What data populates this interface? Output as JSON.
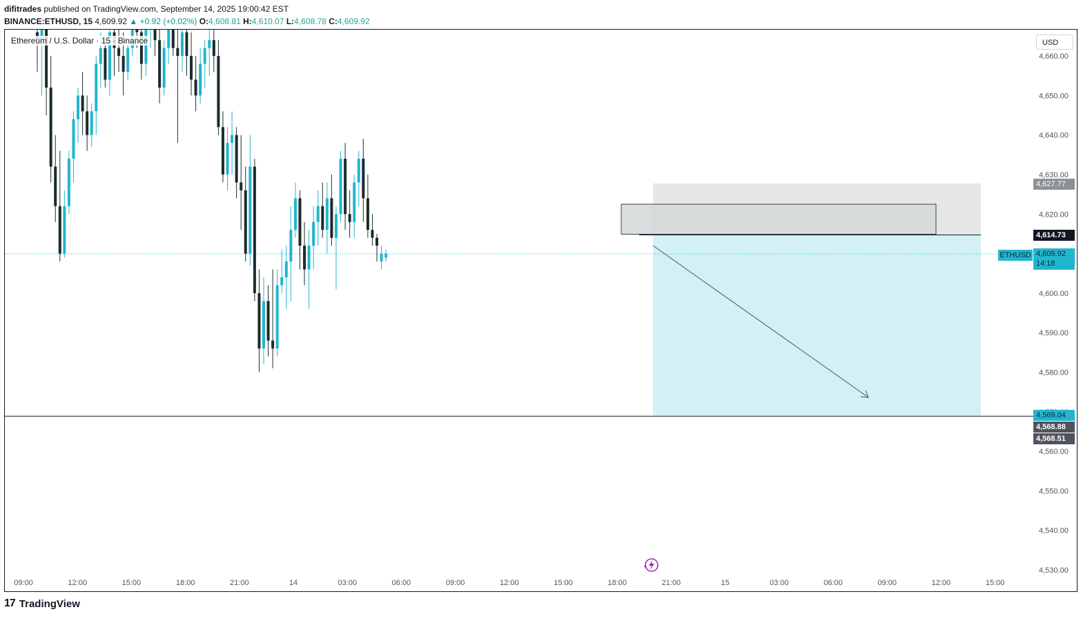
{
  "header": {
    "publisher": "difitrades",
    "published_text": "published on TradingView.com, September 14, 2025 19:00:42 EST",
    "symbol": "BINANCE:ETHUSD, 15",
    "last": "4,609.92",
    "change": "▲ +0.92 (+0.02%)",
    "o_label": "O:",
    "o_val": "4,608.81",
    "h_label": "H:",
    "h_val": "4,610.07",
    "l_label": "L:",
    "l_val": "4,608.78",
    "c_label": "C:",
    "c_val": "4,609.92"
  },
  "legend": {
    "symbol_name": "Ethereum / U.S. Dollar · 15 · Binance"
  },
  "currency": "USD",
  "price_tags": {
    "target_zone_top": "4,627.77",
    "entry": "4,614.73",
    "ethusd_label": "ETHUSD",
    "last_price": "4,609.92",
    "countdown": "14:18",
    "target": "4,569.04",
    "t2": "4,568.88",
    "t3": "4,568.51"
  },
  "footer": {
    "brand": "TradingView"
  },
  "colors": {
    "bull": "#22b5cf",
    "bear": "#1c2b2b",
    "target_zone": "#d2f0f5",
    "stop_zone": "#e6e7e8",
    "box": "#d4d7d8"
  },
  "chart_data": {
    "type": "candlestick",
    "symbol": "BINANCE:ETHUSD",
    "interval": "15",
    "ylim": [
      4527,
      4666
    ],
    "y_ticks": [
      4530,
      4540,
      4550,
      4560,
      4570,
      4580,
      4590,
      4600,
      4610,
      4620,
      4630,
      4640,
      4650,
      4660
    ],
    "x_ticks": [
      "09:00",
      "12:00",
      "15:00",
      "18:00",
      "21:00",
      "14",
      "03:00",
      "06:00",
      "09:00",
      "12:00",
      "15:00",
      "18:00",
      "21:00",
      "15",
      "03:00",
      "06:00",
      "09:00",
      "12:00",
      "15:00"
    ],
    "last_price": 4609.92,
    "position": {
      "type": "short",
      "entry": 4614.73,
      "stop": 4627.77,
      "target": 4569.04
    },
    "order_block": {
      "top": 4622.5,
      "bottom": 4614.9
    },
    "candles": [
      [
        4666,
        4668,
        4656,
        4664
      ],
      [
        4664,
        4672,
        4650,
        4670
      ],
      [
        4670,
        4674,
        4645,
        4652
      ],
      [
        4652,
        4660,
        4628,
        4632
      ],
      [
        4632,
        4640,
        4618,
        4622
      ],
      [
        4622,
        4636,
        4608,
        4610
      ],
      [
        4610,
        4626,
        4609,
        4622
      ],
      [
        4622,
        4636,
        4620,
        4634
      ],
      [
        4634,
        4646,
        4628,
        4644
      ],
      [
        4644,
        4652,
        4638,
        4650
      ],
      [
        4650,
        4656,
        4640,
        4646
      ],
      [
        4646,
        4650,
        4636,
        4640
      ],
      [
        4640,
        4648,
        4637,
        4646
      ],
      [
        4646,
        4660,
        4640,
        4658
      ],
      [
        4658,
        4666,
        4652,
        4662
      ],
      [
        4662,
        4665,
        4652,
        4654
      ],
      [
        4654,
        4668,
        4650,
        4666
      ],
      [
        4666,
        4670,
        4655,
        4662
      ],
      [
        4662,
        4668,
        4656,
        4660
      ],
      [
        4660,
        4666,
        4650,
        4656
      ],
      [
        4656,
        4664,
        4654,
        4662
      ],
      [
        4662,
        4670,
        4660,
        4668
      ],
      [
        4668,
        4672,
        4662,
        4666
      ],
      [
        4666,
        4668,
        4654,
        4658
      ],
      [
        4658,
        4670,
        4655,
        4668
      ],
      [
        4668,
        4674,
        4662,
        4670
      ],
      [
        4670,
        4674,
        4660,
        4664
      ],
      [
        4664,
        4668,
        4648,
        4652
      ],
      [
        4652,
        4664,
        4650,
        4662
      ],
      [
        4662,
        4670,
        4658,
        4668
      ],
      [
        4668,
        4672,
        4660,
        4662
      ],
      [
        4662,
        4668,
        4638,
        4660
      ],
      [
        4660,
        4668,
        4656,
        4666
      ],
      [
        4666,
        4670,
        4655,
        4660
      ],
      [
        4660,
        4666,
        4650,
        4654
      ],
      [
        4654,
        4660,
        4646,
        4650
      ],
      [
        4650,
        4662,
        4648,
        4658
      ],
      [
        4658,
        4664,
        4652,
        4662
      ],
      [
        4662,
        4668,
        4655,
        4664
      ],
      [
        4664,
        4668,
        4656,
        4660
      ],
      [
        4660,
        4664,
        4640,
        4642
      ],
      [
        4642,
        4646,
        4628,
        4630
      ],
      [
        4630,
        4642,
        4626,
        4638
      ],
      [
        4638,
        4646,
        4630,
        4640
      ],
      [
        4640,
        4642,
        4624,
        4628
      ],
      [
        4628,
        4640,
        4616,
        4626
      ],
      [
        4626,
        4632,
        4608,
        4610
      ],
      [
        4610,
        4640,
        4607,
        4632
      ],
      [
        4632,
        4634,
        4598,
        4600
      ],
      [
        4600,
        4606,
        4580,
        4586
      ],
      [
        4586,
        4604,
        4582,
        4598
      ],
      [
        4598,
        4602,
        4584,
        4588
      ],
      [
        4588,
        4606,
        4581,
        4586
      ],
      [
        4586,
        4606,
        4584,
        4602
      ],
      [
        4602,
        4611,
        4600,
        4604
      ],
      [
        4604,
        4612,
        4596,
        4608
      ],
      [
        4608,
        4622,
        4598,
        4616
      ],
      [
        4616,
        4628,
        4614,
        4624
      ],
      [
        4624,
        4626,
        4606,
        4612
      ],
      [
        4612,
        4618,
        4602,
        4606
      ],
      [
        4606,
        4616,
        4596,
        4612
      ],
      [
        4612,
        4622,
        4606,
        4618
      ],
      [
        4618,
        4626,
        4612,
        4622
      ],
      [
        4622,
        4628,
        4614,
        4616
      ],
      [
        4616,
        4628,
        4610,
        4624
      ],
      [
        4624,
        4630,
        4612,
        4614
      ],
      [
        4614,
        4622,
        4601,
        4620
      ],
      [
        4620,
        4636,
        4618,
        4634
      ],
      [
        4634,
        4638,
        4616,
        4620
      ],
      [
        4620,
        4626,
        4614,
        4618
      ],
      [
        4618,
        4630,
        4614,
        4628
      ],
      [
        4628,
        4636,
        4622,
        4634
      ],
      [
        4634,
        4639,
        4618,
        4624
      ],
      [
        4624,
        4630,
        4614,
        4616
      ],
      [
        4616,
        4620,
        4612,
        4614
      ],
      [
        4614,
        4615,
        4608,
        4612
      ],
      [
        4608,
        4612,
        4606,
        4610
      ],
      [
        4609,
        4611,
        4608,
        4610
      ]
    ]
  }
}
